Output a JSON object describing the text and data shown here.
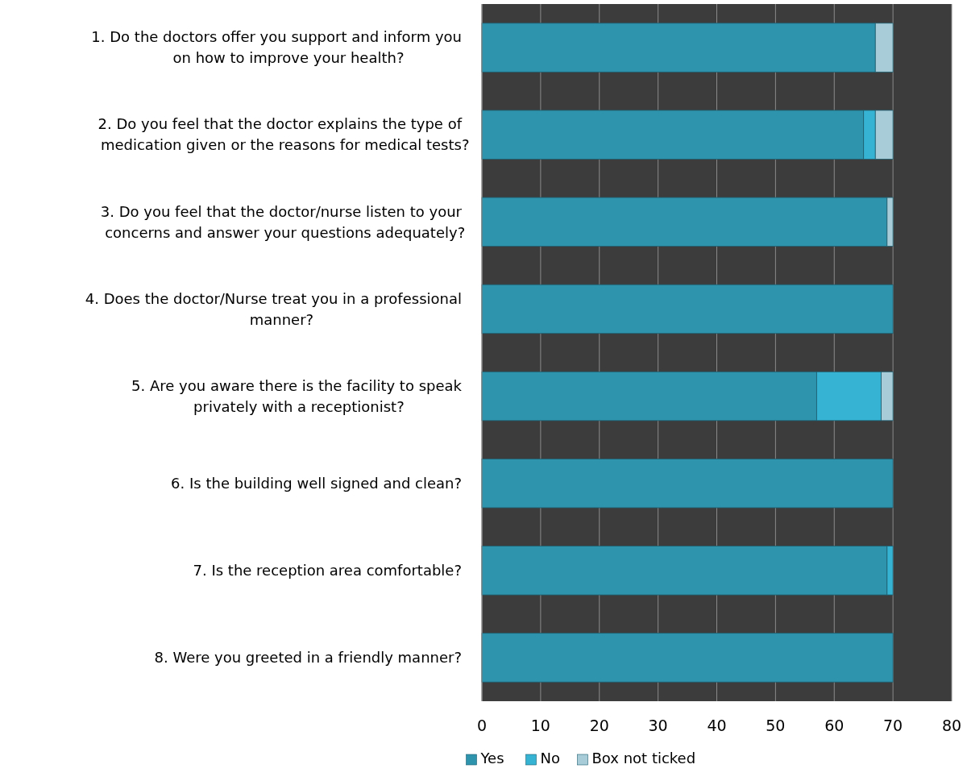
{
  "chart_data": {
    "type": "bar",
    "orientation": "horizontal",
    "stacked": true,
    "categories": [
      "1. Do the doctors offer you support and inform you on how to improve your health?",
      "2. Do you feel that the doctor explains the type of medication given or the reasons for medical tests?",
      "3. Do you feel that the doctor/nurse listen to your concerns and answer your questions adequately?",
      "4. Does the doctor/Nurse treat you in a professional manner?",
      "5. Are you aware there is the facility to speak privately with a receptionist?",
      "6. Is the building well signed and clean?",
      "7. Is the reception area comfortable?",
      "8. Were you greeted in a friendly manner?"
    ],
    "series": [
      {
        "name": "Yes",
        "color": "#2e93ad",
        "values": [
          67,
          65,
          69,
          70,
          57,
          70,
          69,
          70
        ]
      },
      {
        "name": "No",
        "color": "#36b3d2",
        "values": [
          0,
          2,
          0,
          0,
          11,
          0,
          1,
          0
        ]
      },
      {
        "name": "Box not ticked",
        "color": "#a8cdd9",
        "values": [
          3,
          3,
          1,
          0,
          2,
          0,
          0,
          0
        ]
      }
    ],
    "xlim": [
      0,
      80
    ],
    "xticks": [
      0,
      10,
      20,
      30,
      40,
      50,
      60,
      70,
      80
    ],
    "grid": "x",
    "legend": "bottom"
  }
}
